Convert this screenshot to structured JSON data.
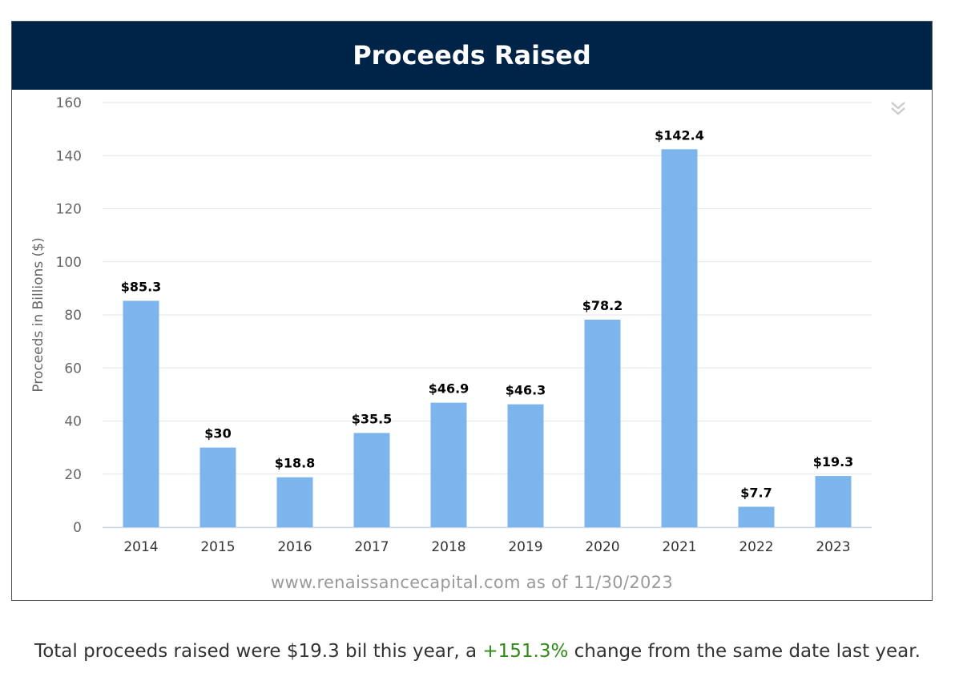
{
  "header": {
    "title": "Proceeds Raised"
  },
  "source_text": "www.renaissancecapital.com as of 11/30/2023",
  "summary": {
    "prefix": "Total proceeds raised were $19.3 bil this year, a ",
    "change": "+151.3%",
    "suffix": " change from the same date last year.",
    "change_color": "#2e8b16"
  },
  "menu_icon": "chevron-double-down-icon",
  "colors": {
    "bar": "#7cb5ec",
    "header_bg": "#002447",
    "grid": "#e6e6e6"
  },
  "chart_data": {
    "type": "bar",
    "title": "Proceeds Raised",
    "xlabel": "",
    "ylabel": "Proceeds in Billions ($)",
    "ylim": [
      0,
      160
    ],
    "yticks": [
      0,
      20,
      40,
      60,
      80,
      100,
      120,
      140,
      160
    ],
    "grid": true,
    "categories": [
      "2014",
      "2015",
      "2016",
      "2017",
      "2018",
      "2019",
      "2020",
      "2021",
      "2022",
      "2023"
    ],
    "values": [
      85.3,
      30,
      18.8,
      35.5,
      46.9,
      46.3,
      78.2,
      142.4,
      7.7,
      19.3
    ],
    "data_labels": [
      "$85.3",
      "$30",
      "$18.8",
      "$35.5",
      "$46.9",
      "$46.3",
      "$78.2",
      "$142.4",
      "$7.7",
      "$19.3"
    ]
  }
}
